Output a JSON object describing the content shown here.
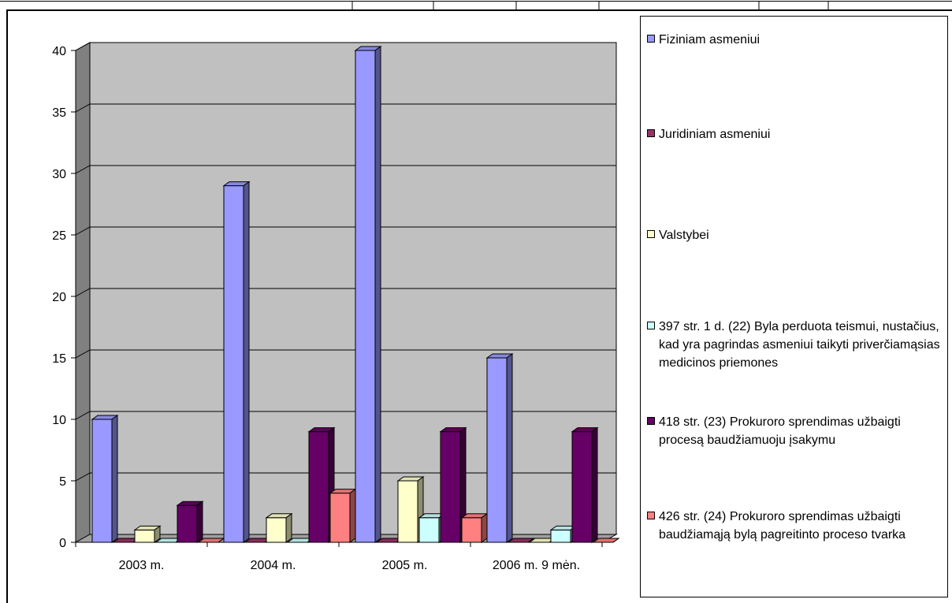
{
  "chart_data": {
    "type": "bar",
    "categories": [
      "2003 m.",
      "2004 m.",
      "2005 m.",
      "2006 m. 9 mėn."
    ],
    "ylim": [
      0,
      40
    ],
    "yticks": [
      0,
      5,
      10,
      15,
      20,
      25,
      30,
      35,
      40
    ],
    "grid": true,
    "legend_position": "right",
    "series": [
      {
        "name": "Fiziniam asmeniui",
        "color": "#9999FF",
        "values": [
          10,
          29,
          40,
          15
        ]
      },
      {
        "name": "Juridiniam asmeniui",
        "color": "#993366",
        "values": [
          0,
          0,
          0,
          0
        ]
      },
      {
        "name": "Valstybei",
        "color": "#FFFFCC",
        "values": [
          1,
          2,
          5,
          0
        ]
      },
      {
        "name": "397 str. 1 d. (22) Byla perduota teismui, nustačius, kad yra pagrindas asmeniui taikyti priverčiamąsias medicinos priemones",
        "color": "#CCFFFF",
        "values": [
          0,
          0,
          2,
          1
        ]
      },
      {
        "name": "418 str. (23) Prokuroro sprendimas užbaigti procesą baudžiamuoju įsakymu",
        "color": "#660066",
        "values": [
          3,
          9,
          9,
          9
        ]
      },
      {
        "name": "426 str. (24) Prokuroro sprendimas užbaigti baudžiamąją bylą pagreitinto proceso tvarka",
        "color": "#FF8080",
        "values": [
          0,
          4,
          2,
          0
        ]
      }
    ]
  },
  "colors": {
    "wall": "#C0C0C0",
    "wall_side": "#808080",
    "floor": "#A0A0A0",
    "gridline": "#000000"
  }
}
